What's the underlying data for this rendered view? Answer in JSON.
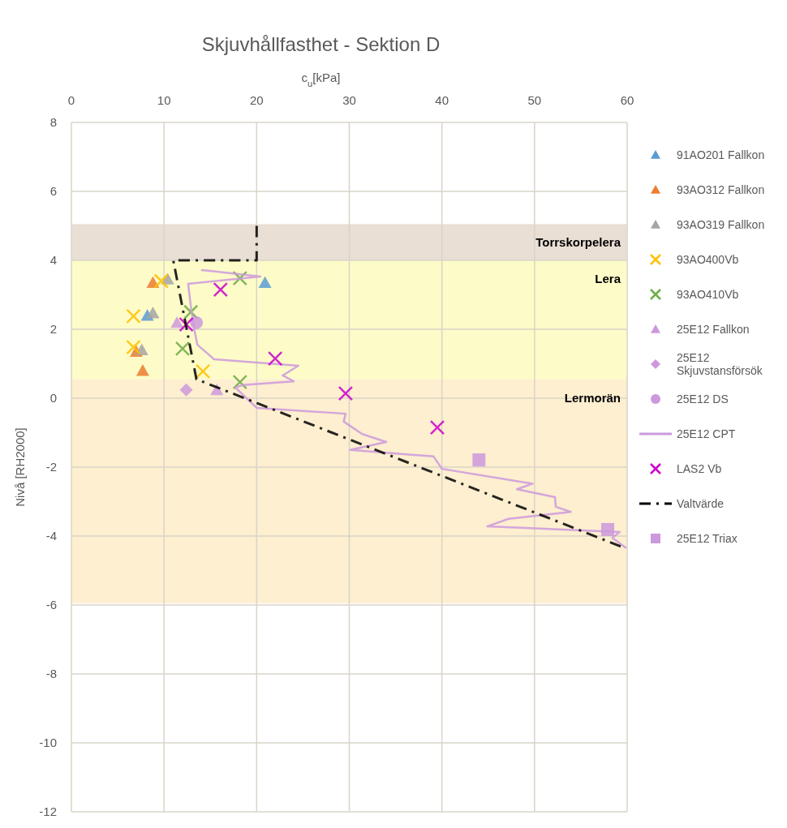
{
  "chart_data": {
    "type": "scatter",
    "title": "Skjuvhållfasthet - Sektion D",
    "xlabel": "c$_{u}$[kPa]",
    "ylabel": "Nivå [RH2000]",
    "xlim": [
      0,
      60
    ],
    "xticks": [
      0,
      10,
      20,
      30,
      40,
      50,
      60
    ],
    "ylim": [
      -12,
      8
    ],
    "yticks": [
      -12,
      -10,
      -8,
      -6,
      -4,
      -2,
      0,
      2,
      4,
      6,
      8
    ],
    "grid": true,
    "legend": "right",
    "bands": [
      {
        "axis": "y",
        "from": 4,
        "to": 5.05,
        "label": "Torrskorpelera",
        "color": "#e9dfd5"
      },
      {
        "axis": "y",
        "from": 0.55,
        "to": 4,
        "label": "Lera",
        "color": "#fdfcc8"
      },
      {
        "axis": "y",
        "from": -5.95,
        "to": 0.55,
        "label": "Lermorän",
        "color": "#fdefcf"
      }
    ],
    "series": [
      {
        "name": "91AO201 Fallkon",
        "color": "#5b9bd5",
        "marker": "triangle",
        "x": [
          20.9,
          8.2
        ],
        "values": [
          3.35,
          2.4
        ]
      },
      {
        "name": "93AO312 Fallkon",
        "color": "#ed7d31",
        "marker": "triangle",
        "x": [
          8.8,
          7.0,
          7.7
        ],
        "values": [
          3.35,
          1.35,
          0.8
        ]
      },
      {
        "name": "93AO319 Fallkon",
        "color": "#a5a5a5",
        "marker": "triangle",
        "x": [
          10.4,
          8.8,
          7.6
        ],
        "values": [
          3.45,
          2.47,
          1.4
        ]
      },
      {
        "name": "93AO400Vb",
        "color": "#ffc000",
        "marker": "cross",
        "x": [
          9.7,
          6.7,
          6.7,
          14.2
        ],
        "values": [
          3.4,
          2.38,
          1.48,
          0.78
        ]
      },
      {
        "name": "93AO410Vb",
        "color": "#70ad47",
        "marker": "cross",
        "x": [
          18.2,
          12.9,
          12.0,
          18.2
        ],
        "values": [
          3.48,
          2.5,
          1.44,
          0.47
        ]
      },
      {
        "name": "25E12 Fallkon",
        "color": "#cc99dd",
        "marker": "triangle",
        "x": [
          11.4,
          15.7
        ],
        "values": [
          2.19,
          0.24
        ]
      },
      {
        "name": "25E12 Skjuvstansförsök",
        "color": "#cc99dd",
        "marker": "diamond",
        "x": [
          12.4
        ],
        "values": [
          0.24
        ]
      },
      {
        "name": "25E12 DS",
        "color": "#cc99dd",
        "marker": "circle",
        "x": [
          13.5
        ],
        "values": [
          2.19
        ]
      },
      {
        "name": "25E12 CPT",
        "type": "line",
        "color": "#cc99dd",
        "marker": "none",
        "line_style": "solid",
        "x": [
          14.0,
          20.4,
          12.6,
          12.9,
          13.3,
          13.6,
          15.4,
          24.5,
          22.8,
          24.0,
          18.5,
          17.7,
          20.0,
          29.6,
          29.4,
          31.4,
          34.0,
          30.1,
          39.1,
          40.0,
          49.8,
          48.1,
          52.2,
          52.3,
          53.9,
          47.2,
          44.9,
          59.2,
          58.4,
          59.9
        ],
        "values": [
          3.72,
          3.53,
          3.32,
          2.66,
          1.95,
          1.55,
          1.13,
          0.94,
          0.66,
          0.49,
          0.38,
          0.31,
          -0.28,
          -0.45,
          -0.68,
          -1.04,
          -1.27,
          -1.5,
          -1.69,
          -2.05,
          -2.48,
          -2.64,
          -2.87,
          -3.15,
          -3.3,
          -3.5,
          -3.72,
          -3.88,
          -4.05,
          -4.35
        ]
      },
      {
        "name": "LAS2 Vb",
        "color": "#cc00cc",
        "marker": "cross",
        "x": [
          16.1,
          12.4,
          22.0,
          29.6,
          39.5
        ],
        "values": [
          3.15,
          2.14,
          1.15,
          0.14,
          -0.85
        ]
      },
      {
        "name": "Valtvärde",
        "type": "line",
        "color": "#000000",
        "marker": "none",
        "line_style": "dashed",
        "x": [
          20,
          20,
          11,
          13.5,
          59.3
        ],
        "values": [
          5.0,
          4.0,
          4.0,
          0.55,
          -4.3
        ]
      },
      {
        "name": "25E12 Triax",
        "color": "#cc99dd",
        "marker": "square",
        "x": [
          44.0,
          57.9
        ],
        "values": [
          -1.79,
          -3.81
        ]
      }
    ]
  }
}
